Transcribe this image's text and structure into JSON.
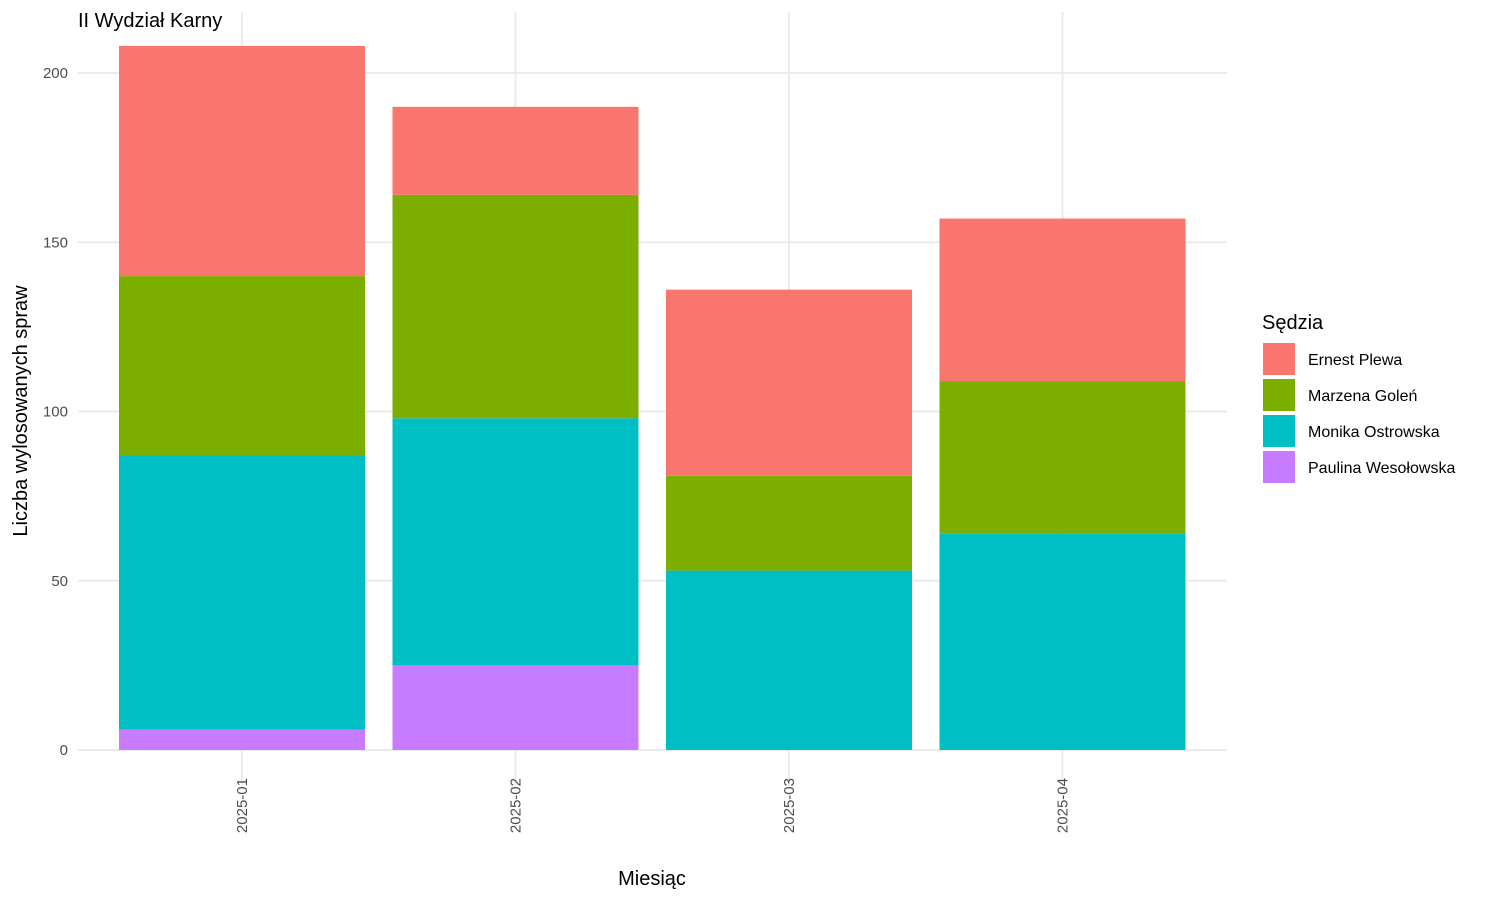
{
  "chart_data": {
    "type": "bar",
    "stacked": true,
    "title": "II Wydział Karny",
    "xlabel": "Miesiąc",
    "ylabel": "Liczba wylosowanych spraw",
    "categories": [
      "2025-01",
      "2025-02",
      "2025-03",
      "2025-04"
    ],
    "ylim": [
      0,
      210
    ],
    "yticks": [
      0,
      50,
      100,
      150,
      200
    ],
    "grid": true,
    "legend": {
      "title": "Sędzia",
      "position": "right"
    },
    "series": [
      {
        "name": "Paulina Wesołowska",
        "color": "#C77CFF",
        "values": [
          6,
          25,
          0,
          0
        ]
      },
      {
        "name": "Monika Ostrowska",
        "color": "#00BFC4",
        "values": [
          81,
          73,
          53,
          64
        ]
      },
      {
        "name": "Marzena Goleń",
        "color": "#7CAE00",
        "values": [
          53,
          66,
          28,
          45
        ]
      },
      {
        "name": "Ernest Plewa",
        "color": "#F8766D",
        "values": [
          68,
          26,
          55,
          48
        ]
      }
    ],
    "legend_order": [
      "Ernest Plewa",
      "Marzena Goleń",
      "Monika Ostrowska",
      "Paulina Wesołowska"
    ]
  }
}
